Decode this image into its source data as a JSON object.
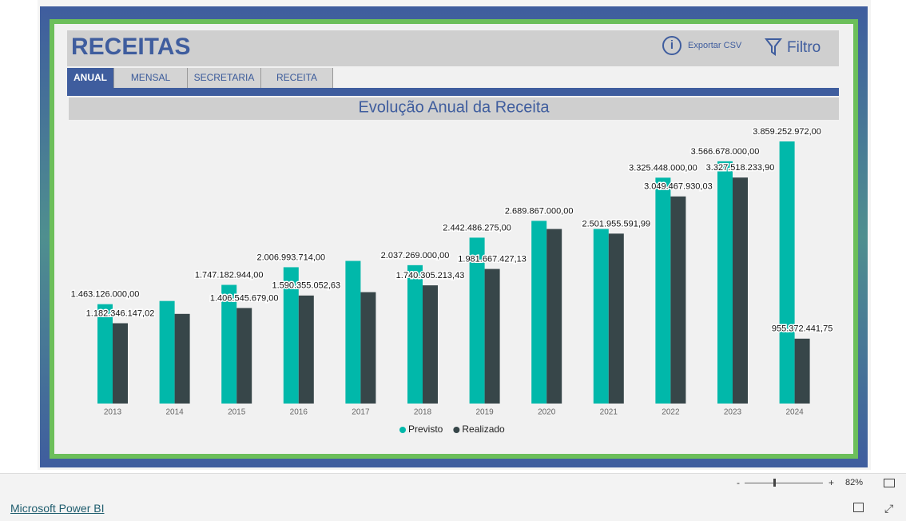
{
  "header": {
    "title": "RECEITAS",
    "export": "Exportar CSV",
    "filter": "Filtro"
  },
  "tabs": [
    "ANUAL",
    "MENSAL",
    "SECRETARIA",
    "RECEITA"
  ],
  "chart_data": {
    "type": "bar",
    "title": "Evolução Anual da Receita",
    "categories": [
      "2013",
      "2014",
      "2015",
      "2016",
      "2017",
      "2018",
      "2019",
      "2020",
      "2021",
      "2022",
      "2023",
      "2024"
    ],
    "series": [
      {
        "name": "Previsto",
        "color": "#01b8aa",
        "values": [
          1463126000,
          1510000000,
          1747182944,
          2006993714,
          2100000000,
          2037269000,
          2442486275,
          2689867000,
          2570000000,
          3325448000,
          3566678000,
          3859252972
        ],
        "value_labels": [
          "1.463.126.000,00",
          null,
          "1.747.182.944,00",
          "2.006.993.714,00",
          null,
          "2.037.269.000,00",
          "2.442.486.275,00",
          "2.689.867.000,00",
          null,
          "3.325.448.000,00",
          "3.566.678.000,00",
          "3.859.252.972,00"
        ]
      },
      {
        "name": "Realizado",
        "color": "#374649",
        "values": [
          1182346147.02,
          1320000000,
          1406545679,
          1590355052.63,
          1640000000,
          1740305213.43,
          1981667427.13,
          2570000000,
          2501955591.99,
          3049467930.03,
          3327518233.9,
          955372441.75
        ],
        "value_labels": [
          "1.182.346.147,02",
          null,
          "1.406.545.679,00",
          "1.590.355.052,63",
          null,
          "1.740.305.213,43",
          "1.981.667.427,13",
          null,
          "2.501.955.591,99",
          "3.049.467.930,03",
          "3.327.518.233,90",
          "955.372.441,75"
        ]
      }
    ]
  },
  "footer": {
    "zoom_minus": "-",
    "zoom_plus": "+",
    "zoom": "82%",
    "brand": "Microsoft Power BI"
  }
}
